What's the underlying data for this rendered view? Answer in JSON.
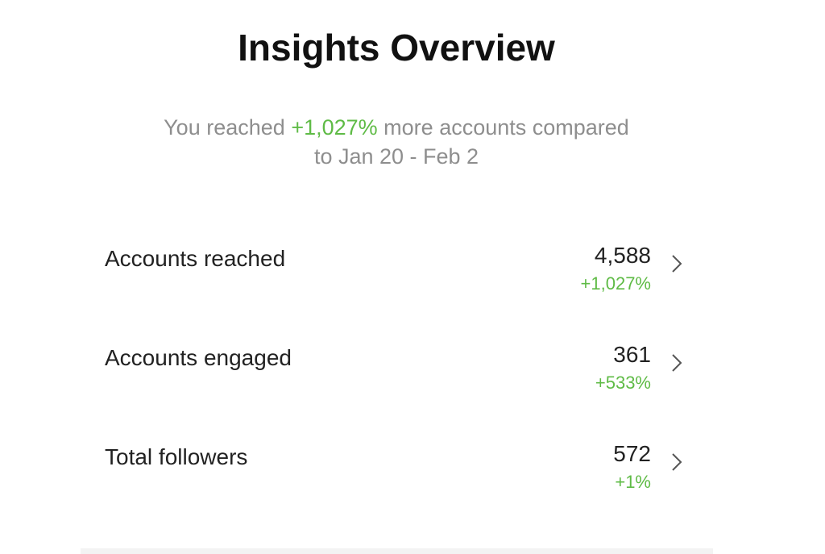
{
  "header": {
    "title": "Insights Overview"
  },
  "summary": {
    "prefix": "You reached",
    "highlight": "+1,027%",
    "suffix": "more accounts compared",
    "period": "to Jan 20 - Feb 2"
  },
  "rows": [
    {
      "label": "Accounts reached",
      "value": "4,588",
      "change": "+1,027%"
    },
    {
      "label": "Accounts engaged",
      "value": "361",
      "change": "+533%"
    },
    {
      "label": "Total followers",
      "value": "572",
      "change": "+1%"
    }
  ]
}
